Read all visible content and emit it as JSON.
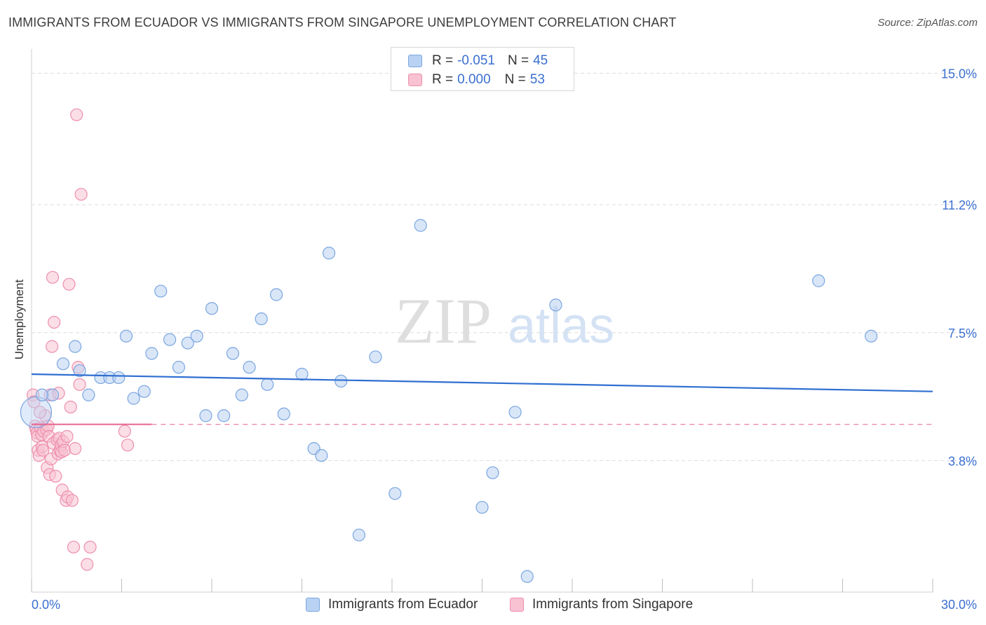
{
  "header": {
    "title": "IMMIGRANTS FROM ECUADOR VS IMMIGRANTS FROM SINGAPORE UNEMPLOYMENT CORRELATION CHART",
    "source": "Source: ZipAtlas.com"
  },
  "watermark": {
    "zip": "ZIP",
    "atlas": "atlas"
  },
  "legend": {
    "rows": [
      {
        "r_label": "R =",
        "r_value": "-0.051",
        "n_label": "N =",
        "n_value": "45"
      },
      {
        "r_label": "R =",
        "r_value": "0.000",
        "n_label": "N =",
        "n_value": "53"
      }
    ]
  },
  "bottom_legend": {
    "ecuador": "Immigrants from Ecuador",
    "singapore": "Immigrants from Singapore"
  },
  "colors": {
    "ecuador_fill": "#b9d2f3",
    "ecuador_stroke": "#7aa6e0",
    "ecuador_line": "#2f6fd1",
    "singapore_fill": "#f8c2d2",
    "singapore_stroke": "#ee8fae",
    "singapore_line": "#e8638f",
    "axis_text": "#3a6fd0",
    "grid": "#dcdcdc"
  },
  "chart_data": {
    "type": "scatter",
    "title": "IMMIGRANTS FROM ECUADOR VS IMMIGRANTS FROM SINGAPORE UNEMPLOYMENT CORRELATION CHART",
    "xlabel": "",
    "ylabel": "Unemployment",
    "xlim": [
      0,
      30
    ],
    "ylim": [
      0,
      15.7
    ],
    "x_tick_labels": [
      "0.0%",
      "30.0%"
    ],
    "y_ticks": [
      3.8,
      7.5,
      11.2,
      15.0
    ],
    "y_tick_labels": [
      "3.8%",
      "7.5%",
      "11.2%",
      "15.0%"
    ],
    "grid": true,
    "legend_position": "top-center",
    "series": [
      {
        "name": "Immigrants from Ecuador",
        "color": "#7aa6e0",
        "trend": {
          "x": [
            0,
            30
          ],
          "y": [
            6.3,
            5.8
          ]
        },
        "points": [
          [
            0.15,
            5.2
          ],
          [
            0.7,
            5.7
          ],
          [
            1.05,
            6.6
          ],
          [
            1.45,
            7.1
          ],
          [
            1.6,
            6.4
          ],
          [
            1.9,
            5.7
          ],
          [
            2.3,
            6.2
          ],
          [
            2.6,
            6.2
          ],
          [
            2.9,
            6.2
          ],
          [
            3.15,
            7.4
          ],
          [
            3.4,
            5.6
          ],
          [
            3.75,
            5.8
          ],
          [
            4.0,
            6.9
          ],
          [
            4.3,
            8.7
          ],
          [
            4.6,
            7.3
          ],
          [
            4.9,
            6.5
          ],
          [
            5.2,
            7.2
          ],
          [
            5.5,
            7.4
          ],
          [
            5.8,
            5.1
          ],
          [
            6.0,
            8.2
          ],
          [
            6.4,
            5.1
          ],
          [
            6.7,
            6.9
          ],
          [
            7.0,
            5.7
          ],
          [
            7.25,
            6.5
          ],
          [
            7.65,
            7.9
          ],
          [
            7.85,
            6.0
          ],
          [
            8.15,
            8.6
          ],
          [
            8.4,
            5.15
          ],
          [
            9.0,
            6.3
          ],
          [
            9.4,
            4.15
          ],
          [
            9.65,
            3.95
          ],
          [
            9.9,
            9.8
          ],
          [
            10.3,
            6.1
          ],
          [
            10.9,
            1.65
          ],
          [
            11.45,
            6.8
          ],
          [
            12.1,
            2.85
          ],
          [
            12.95,
            10.6
          ],
          [
            15.0,
            2.45
          ],
          [
            15.35,
            3.45
          ],
          [
            16.1,
            5.2
          ],
          [
            16.5,
            0.45
          ],
          [
            17.45,
            8.3
          ],
          [
            26.2,
            9.0
          ],
          [
            27.95,
            7.4
          ],
          [
            0.35,
            5.7
          ]
        ]
      },
      {
        "name": "Immigrants from Singapore",
        "color": "#ee8fae",
        "trend": {
          "x": [
            0,
            4
          ],
          "y": [
            4.85,
            4.85
          ]
        },
        "points": [
          [
            0.05,
            5.7
          ],
          [
            0.08,
            5.5
          ],
          [
            0.12,
            4.8
          ],
          [
            0.15,
            4.7
          ],
          [
            0.18,
            4.6
          ],
          [
            0.2,
            4.5
          ],
          [
            0.22,
            4.1
          ],
          [
            0.25,
            3.95
          ],
          [
            0.3,
            4.75
          ],
          [
            0.33,
            4.55
          ],
          [
            0.35,
            4.2
          ],
          [
            0.38,
            4.1
          ],
          [
            0.4,
            4.65
          ],
          [
            0.45,
            5.1
          ],
          [
            0.5,
            4.7
          ],
          [
            0.52,
            3.6
          ],
          [
            0.55,
            4.8
          ],
          [
            0.58,
            4.5
          ],
          [
            0.6,
            3.4
          ],
          [
            0.62,
            5.7
          ],
          [
            0.65,
            3.85
          ],
          [
            0.68,
            7.1
          ],
          [
            0.7,
            9.1
          ],
          [
            0.72,
            4.3
          ],
          [
            0.75,
            7.8
          ],
          [
            0.8,
            3.35
          ],
          [
            0.85,
            4.4
          ],
          [
            0.88,
            4.0
          ],
          [
            0.9,
            5.75
          ],
          [
            0.92,
            4.45
          ],
          [
            0.95,
            4.1
          ],
          [
            0.98,
            4.25
          ],
          [
            1.0,
            4.05
          ],
          [
            1.02,
            2.95
          ],
          [
            1.05,
            4.35
          ],
          [
            1.1,
            4.1
          ],
          [
            1.15,
            2.65
          ],
          [
            1.18,
            4.5
          ],
          [
            1.2,
            2.75
          ],
          [
            1.25,
            8.9
          ],
          [
            1.3,
            5.35
          ],
          [
            1.35,
            2.65
          ],
          [
            1.4,
            1.3
          ],
          [
            1.45,
            4.15
          ],
          [
            1.5,
            13.8
          ],
          [
            1.55,
            6.5
          ],
          [
            1.6,
            6.0
          ],
          [
            1.65,
            11.5
          ],
          [
            1.85,
            0.8
          ],
          [
            1.95,
            1.3
          ],
          [
            3.1,
            4.65
          ],
          [
            3.2,
            4.25
          ],
          [
            0.28,
            5.2
          ]
        ]
      }
    ]
  }
}
